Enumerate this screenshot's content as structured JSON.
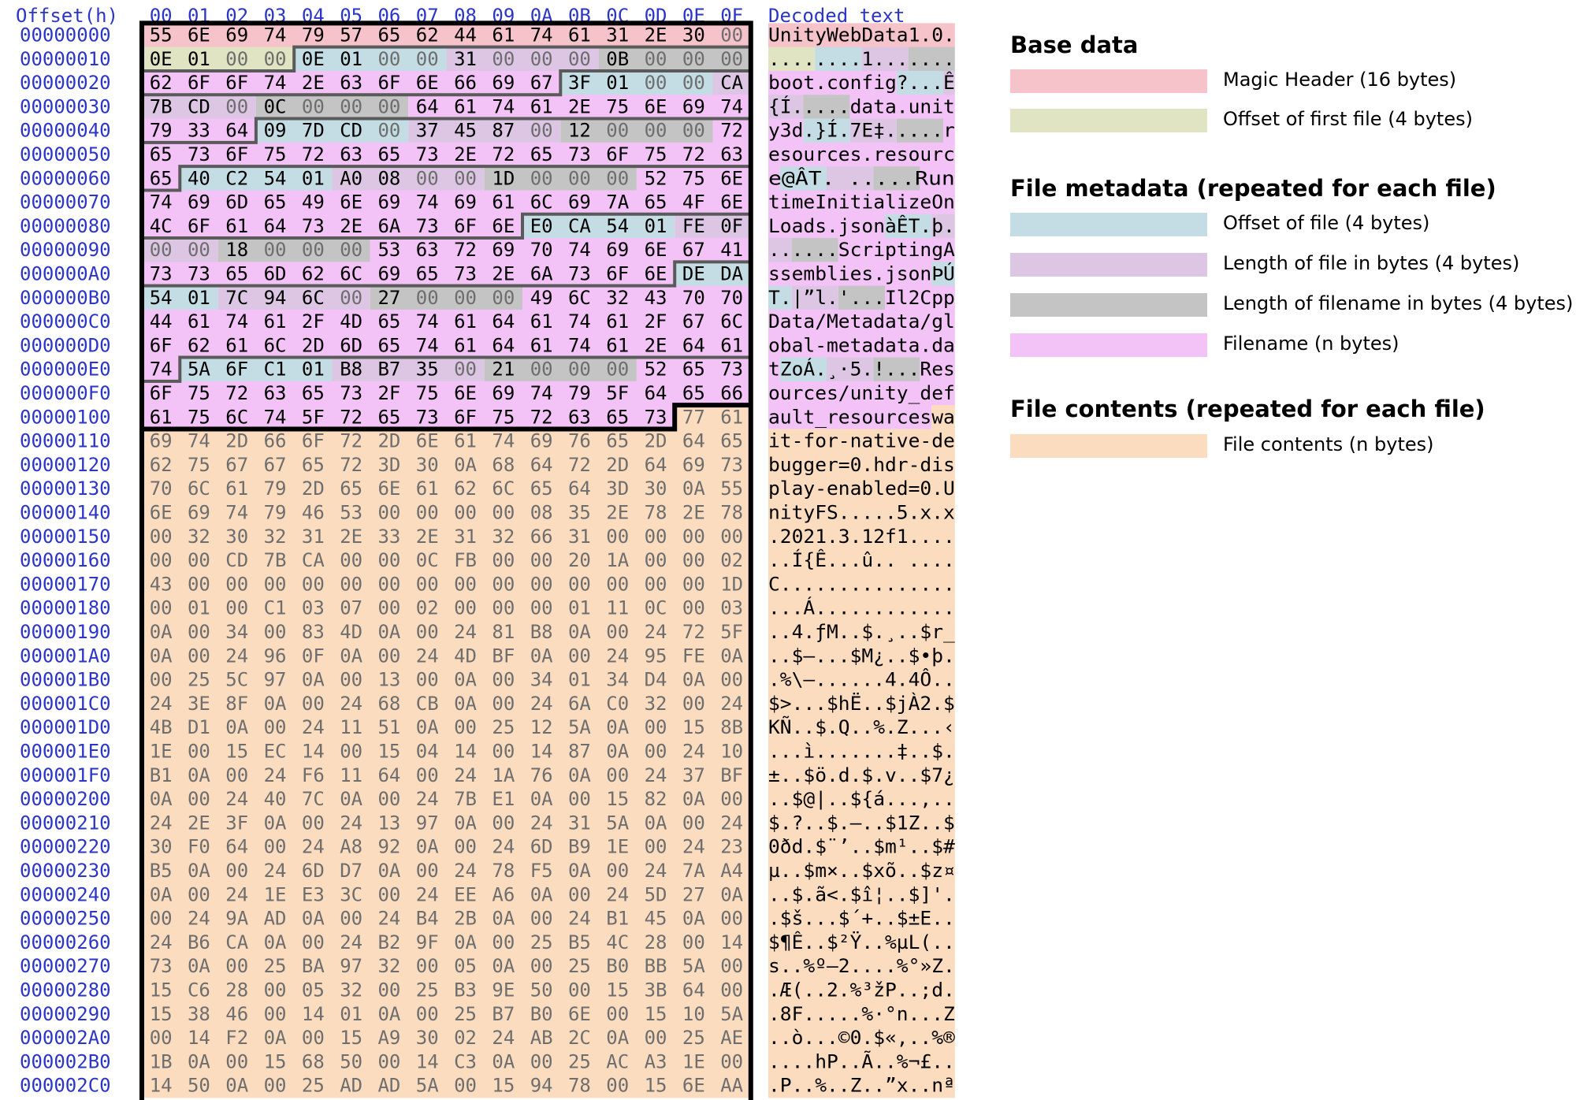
{
  "header": {
    "offset_label": "Offset(h)",
    "columns": [
      "00",
      "01",
      "02",
      "03",
      "04",
      "05",
      "06",
      "07",
      "08",
      "09",
      "0A",
      "0B",
      "0C",
      "0D",
      "0E",
      "0F"
    ],
    "decoded_label": "Decoded text"
  },
  "colors": {
    "magic": "#f7c3cb",
    "first_offset": "#e0e4c2",
    "file_offset": "#c4dde4",
    "file_length": "#dcc6e4",
    "name_length": "#c4c4c4",
    "filename": "#f3c2f7",
    "contents": "#fbdcbf",
    "text_dark": "#000000",
    "text_muted": "#6e6e6e",
    "offset_color": "#2b35c8"
  },
  "rows": [
    {
      "offset": "00000000",
      "hex": "55 6E 69 74 79 57 65 62 44 61 74 61 31 2E 30 00",
      "text": "UnityWebData1.0."
    },
    {
      "offset": "00000010",
      "hex": "0E 01 00 00 0E 01 00 00 31 00 00 00 0B 00 00 00",
      "text": "........1......."
    },
    {
      "offset": "00000020",
      "hex": "62 6F 6F 74 2E 63 6F 6E 66 69 67 3F 01 00 00 CA",
      "text": "boot.config?...Ê"
    },
    {
      "offset": "00000030",
      "hex": "7B CD 00 0C 00 00 00 64 61 74 61 2E 75 6E 69 74",
      "text": "{Í.....data.unit"
    },
    {
      "offset": "00000040",
      "hex": "79 33 64 09 7D CD 00 37 45 87 00 12 00 00 00 72",
      "text": "y3d.}Í.7E‡.....r"
    },
    {
      "offset": "00000050",
      "hex": "65 73 6F 75 72 63 65 73 2E 72 65 73 6F 75 72 63",
      "text": "esources.resourc"
    },
    {
      "offset": "00000060",
      "hex": "65 40 C2 54 01 A0 08 00 00 1D 00 00 00 52 75 6E",
      "text": "e@ÂT. .....Run"
    },
    {
      "offset": "00000070",
      "hex": "74 69 6D 65 49 6E 69 74 69 61 6C 69 7A 65 4F 6E",
      "text": "timeInitializeOn"
    },
    {
      "offset": "00000080",
      "hex": "4C 6F 61 64 73 2E 6A 73 6F 6E E0 CA 54 01 FE 0F",
      "text": "Loads.jsonàÊT.þ."
    },
    {
      "offset": "00000090",
      "hex": "00 00 18 00 00 00 53 63 72 69 70 74 69 6E 67 41",
      "text": "......ScriptingA"
    },
    {
      "offset": "000000A0",
      "hex": "73 73 65 6D 62 6C 69 65 73 2E 6A 73 6F 6E DE DA",
      "text": "ssemblies.jsonÞÚ"
    },
    {
      "offset": "000000B0",
      "hex": "54 01 7C 94 6C 00 27 00 00 00 49 6C 32 43 70 70",
      "text": "T.|”l.'...Il2Cpp"
    },
    {
      "offset": "000000C0",
      "hex": "44 61 74 61 2F 4D 65 74 61 64 61 74 61 2F 67 6C",
      "text": "Data/Metadata/gl"
    },
    {
      "offset": "000000D0",
      "hex": "6F 62 61 6C 2D 6D 65 74 61 64 61 74 61 2E 64 61",
      "text": "obal-metadata.da"
    },
    {
      "offset": "000000E0",
      "hex": "74 5A 6F C1 01 B8 B7 35 00 21 00 00 00 52 65 73",
      "text": "tZoÁ.¸·5.!...Res"
    },
    {
      "offset": "000000F0",
      "hex": "6F 75 72 63 65 73 2F 75 6E 69 74 79 5F 64 65 66",
      "text": "ources/unity_def"
    },
    {
      "offset": "00000100",
      "hex": "61 75 6C 74 5F 72 65 73 6F 75 72 63 65 73 77 61",
      "text": "ault_resourceswa"
    },
    {
      "offset": "00000110",
      "hex": "69 74 2D 66 6F 72 2D 6E 61 74 69 76 65 2D 64 65",
      "text": "it-for-native-de"
    },
    {
      "offset": "00000120",
      "hex": "62 75 67 67 65 72 3D 30 0A 68 64 72 2D 64 69 73",
      "text": "bugger=0.hdr-dis"
    },
    {
      "offset": "00000130",
      "hex": "70 6C 61 79 2D 65 6E 61 62 6C 65 64 3D 30 0A 55",
      "text": "play-enabled=0.U"
    },
    {
      "offset": "00000140",
      "hex": "6E 69 74 79 46 53 00 00 00 00 08 35 2E 78 2E 78",
      "text": "nityFS.....5.x.x"
    },
    {
      "offset": "00000150",
      "hex": "00 32 30 32 31 2E 33 2E 31 32 66 31 00 00 00 00",
      "text": ".2021.3.12f1...."
    },
    {
      "offset": "00000160",
      "hex": "00 00 CD 7B CA 00 00 0C FB 00 00 20 1A 00 00 02",
      "text": "..Í{Ê...û.. ...."
    },
    {
      "offset": "00000170",
      "hex": "43 00 00 00 00 00 00 00 00 00 00 00 00 00 00 1D",
      "text": "C..............."
    },
    {
      "offset": "00000180",
      "hex": "00 01 00 C1 03 07 00 02 00 00 00 01 11 0C 00 03",
      "text": "...Á............"
    },
    {
      "offset": "00000190",
      "hex": "0A 00 34 00 83 4D 0A 00 24 81 B8 0A 00 24 72 5F",
      "text": "..4.ƒM..$.¸..$r_"
    },
    {
      "offset": "000001A0",
      "hex": "0A 00 24 96 0F 0A 00 24 4D BF 0A 00 24 95 FE 0A",
      "text": "..$–...$M¿..$•þ."
    },
    {
      "offset": "000001B0",
      "hex": "00 25 5C 97 0A 00 13 00 0A 00 34 01 34 D4 0A 00",
      "text": ".%\\—......4.4Ô.."
    },
    {
      "offset": "000001C0",
      "hex": "24 3E 8F 0A 00 24 68 CB 0A 00 24 6A C0 32 00 24",
      "text": "$>...$hË..$jÀ2.$"
    },
    {
      "offset": "000001D0",
      "hex": "4B D1 0A 00 24 11 51 0A 00 25 12 5A 0A 00 15 8B",
      "text": "KÑ..$.Q..%.Z...‹"
    },
    {
      "offset": "000001E0",
      "hex": "1E 00 15 EC 14 00 15 04 14 00 14 87 0A 00 24 10",
      "text": "...ì.......‡..$."
    },
    {
      "offset": "000001F0",
      "hex": "B1 0A 00 24 F6 11 64 00 24 1A 76 0A 00 24 37 BF",
      "text": "±..$ö.d.$.v..$7¿"
    },
    {
      "offset": "00000200",
      "hex": "0A 00 24 40 7C 0A 00 24 7B E1 0A 00 15 82 0A 00",
      "text": "..$@|..${á...‚.."
    },
    {
      "offset": "00000210",
      "hex": "24 2E 3F 0A 00 24 13 97 0A 00 24 31 5A 0A 00 24",
      "text": "$.?..$.—..$1Z..$"
    },
    {
      "offset": "00000220",
      "hex": "30 F0 64 00 24 A8 92 0A 00 24 6D B9 1E 00 24 23",
      "text": "0ðd.$¨’..$m¹..$#"
    },
    {
      "offset": "00000230",
      "hex": "B5 0A 00 24 6D D7 0A 00 24 78 F5 0A 00 24 7A A4",
      "text": "µ..$m×..$xõ..$z¤"
    },
    {
      "offset": "00000240",
      "hex": "0A 00 24 1E E3 3C 00 24 EE A6 0A 00 24 5D 27 0A",
      "text": "..$.ã<.$î¦..$]'."
    },
    {
      "offset": "00000250",
      "hex": "00 24 9A AD 0A 00 24 B4 2B 0A 00 24 B1 45 0A 00",
      "text": ".$š...$´+..$±E.."
    },
    {
      "offset": "00000260",
      "hex": "24 B6 CA 0A 00 24 B2 9F 0A 00 25 B5 4C 28 00 14",
      "text": "$¶Ê..$²Ÿ..%µL(.."
    },
    {
      "offset": "00000270",
      "hex": "73 0A 00 25 BA 97 32 00 05 0A 00 25 B0 BB 5A 00",
      "text": "s..%º—2....%°»Z."
    },
    {
      "offset": "00000280",
      "hex": "15 C6 28 00 05 32 00 25 B3 9E 50 00 15 3B 64 00",
      "text": ".Æ(..2.%³žP..;d."
    },
    {
      "offset": "00000290",
      "hex": "15 38 46 00 14 01 0A 00 25 B7 B0 6E 00 15 10 5A",
      "text": ".8F.....%·°n...Z"
    },
    {
      "offset": "000002A0",
      "hex": "00 14 F2 0A 00 15 A9 30 02 24 AB 2C 0A 00 25 AE",
      "text": "..ò...©0.$«,..%®"
    },
    {
      "offset": "000002B0",
      "hex": "1B 0A 00 15 68 50 00 14 C3 0A 00 25 AC A3 1E 00",
      "text": "....hP..Ã..%¬£.."
    },
    {
      "offset": "000002C0",
      "hex": "14 50 0A 00 25 AD AD 5A 00 15 94 78 00 15 6E AA",
      "text": ".P..%..Z..”x..nª"
    }
  ],
  "legend": {
    "base_title": "Base data",
    "base_items": [
      {
        "label": "Magic Header (16 bytes)",
        "color": "#f7c3cb"
      },
      {
        "label": "Offset of first file (4 bytes)",
        "color": "#e0e4c2"
      }
    ],
    "meta_title": "File metadata (repeated for each file)",
    "meta_items": [
      {
        "label": "Offset of file (4 bytes)",
        "color": "#c4dde4"
      },
      {
        "label": "Length of file in bytes (4 bytes)",
        "color": "#dcc6e4"
      },
      {
        "label": "Length of filename in bytes (4 bytes)",
        "color": "#c4c4c4"
      },
      {
        "label": "Filename (n bytes)",
        "color": "#f3c2f7"
      }
    ],
    "contents_title": "File contents (repeated for each file)",
    "contents_items": [
      {
        "label": "File contents (n bytes)",
        "color": "#fbdcbf"
      }
    ]
  }
}
